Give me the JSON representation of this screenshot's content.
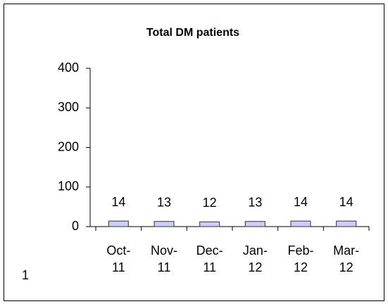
{
  "chart_data": {
    "type": "bar",
    "title": "Total DM patients",
    "categories": [
      "Oct-11",
      "Nov-11",
      "Dec-11",
      "Jan-12",
      "Feb-12",
      "Mar-12"
    ],
    "values": [
      14,
      13,
      12,
      13,
      14,
      14
    ],
    "color": "#ccccff",
    "ylim": [
      0,
      400
    ],
    "yticks": [
      0,
      100,
      200,
      300,
      400
    ],
    "grid": false,
    "annotation": "1"
  }
}
